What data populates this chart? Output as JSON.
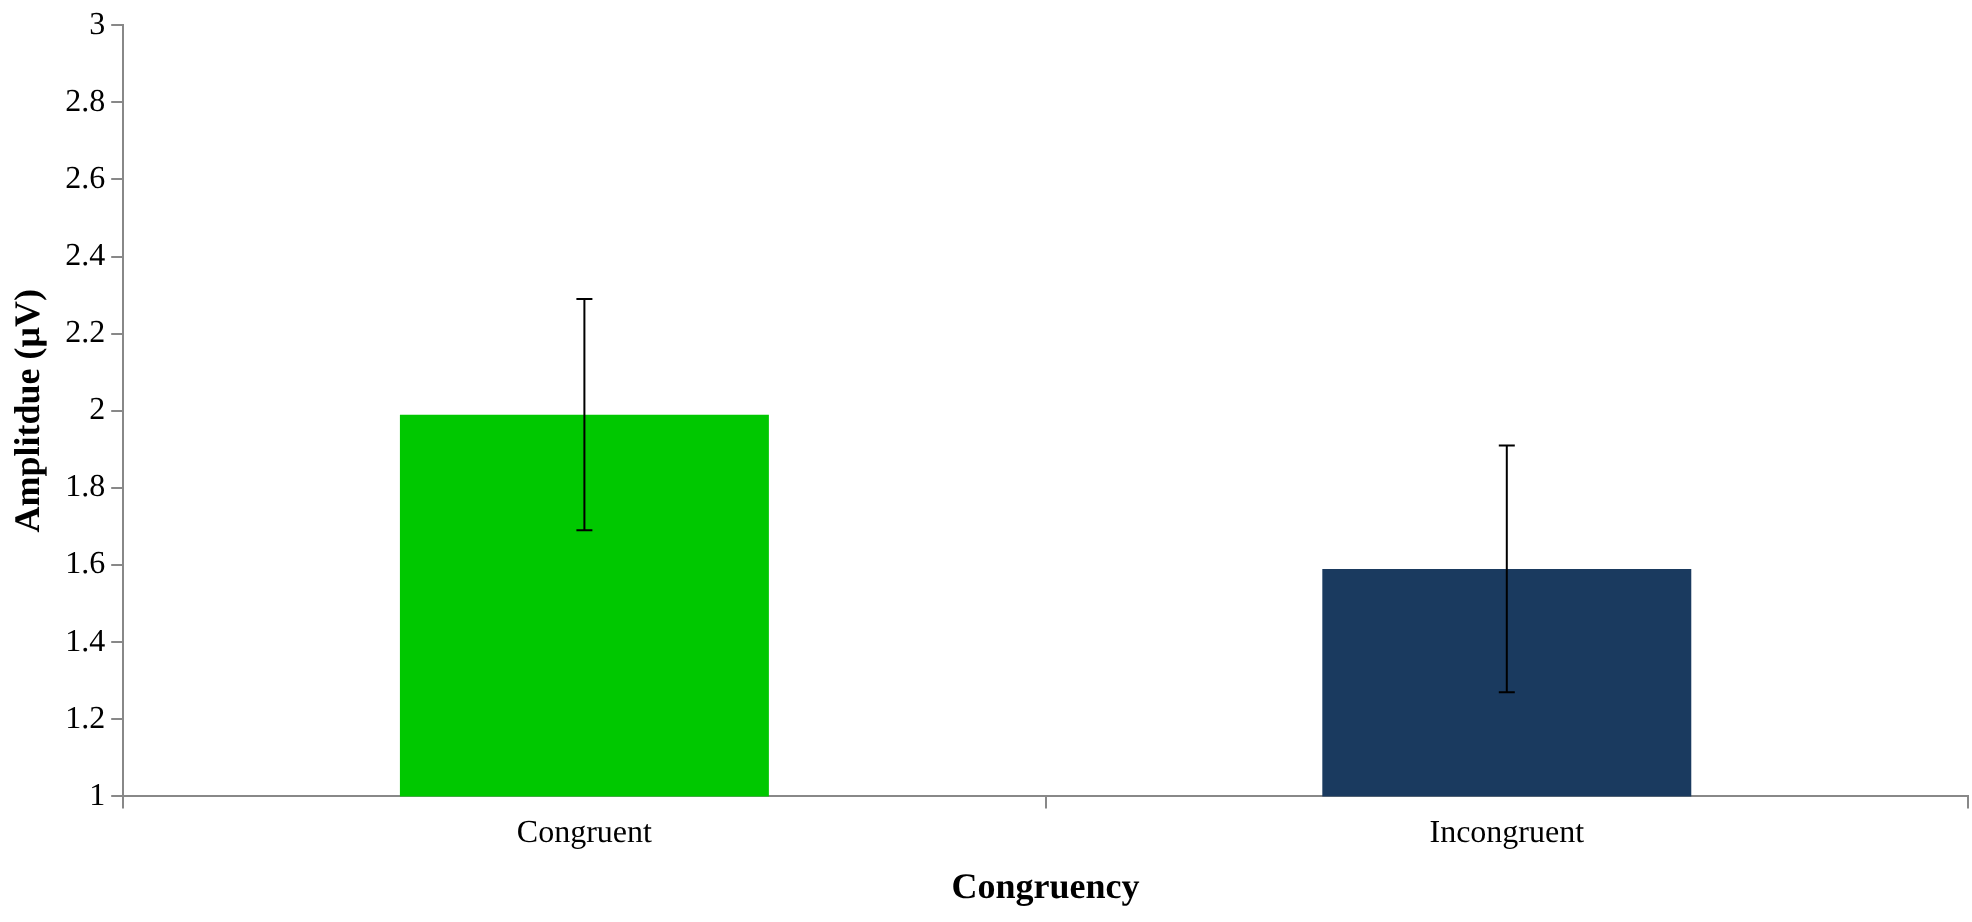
{
  "chart_data": {
    "type": "bar",
    "xlabel": "Congruency",
    "ylabel": "Amplitdue (μV)",
    "categories": [
      "Congruent",
      "Incongruent"
    ],
    "values": [
      1.99,
      1.59
    ],
    "colors": [
      "#00c800",
      "#1a3a5f"
    ],
    "errors": [
      0.3,
      0.32
    ],
    "ylim": [
      1,
      3
    ],
    "yticks": [
      1,
      1.2,
      1.4,
      1.6,
      1.8,
      2,
      2.2,
      2.4,
      2.6,
      2.8,
      3
    ],
    "grid": false,
    "legend": false
  }
}
